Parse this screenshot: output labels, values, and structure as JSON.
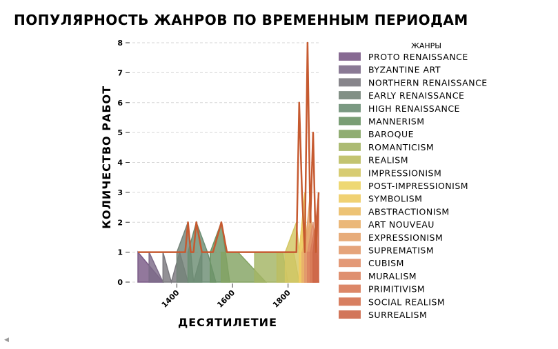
{
  "chart_data": {
    "type": "area",
    "title": "ПОПУЛЯРНОСТЬ ЖАНРОВ ПО ВРЕМЕННЫМ ПЕРИОДАМ",
    "xlabel": "ДЕСЯТИЛЕТИЕ",
    "ylabel": "КОЛИЧЕСТВО РАБОТ",
    "xlim": [
      1260,
      1910
    ],
    "ylim": [
      0,
      8
    ],
    "x_ticks": [
      "1400",
      "1600",
      "1800"
    ],
    "y_ticks": [
      "0",
      "1",
      "2",
      "3",
      "4",
      "5",
      "6",
      "7",
      "8"
    ],
    "grid": "y-dashed",
    "legend_title": "ЖАНРЫ",
    "legend_placement": "right",
    "series": [
      {
        "name": "PROTO RENAISSANCE",
        "color": "#7a5a86",
        "points": [
          [
            1260,
            1
          ],
          [
            1350,
            0
          ]
        ]
      },
      {
        "name": "BYZANTINE ART",
        "color": "#7d6b89",
        "points": [
          [
            1300,
            1
          ],
          [
            1350,
            0
          ]
        ]
      },
      {
        "name": "NORTHERN RENAISSANCE",
        "color": "#7a787e",
        "points": [
          [
            1350,
            1
          ],
          [
            1380,
            0
          ],
          [
            1410,
            1
          ],
          [
            1440,
            0
          ]
        ]
      },
      {
        "name": "EARLY RENAISSANCE",
        "color": "#748479",
        "points": [
          [
            1400,
            1
          ],
          [
            1440,
            2
          ],
          [
            1460,
            0
          ],
          [
            1490,
            1
          ]
        ]
      },
      {
        "name": "HIGH RENAISSANCE",
        "color": "#6c8e74",
        "points": [
          [
            1440,
            1
          ],
          [
            1470,
            2
          ],
          [
            1510,
            1
          ],
          [
            1540,
            0
          ]
        ]
      },
      {
        "name": "MANNERISM",
        "color": "#6c9466",
        "points": [
          [
            1520,
            1
          ],
          [
            1560,
            2
          ],
          [
            1590,
            0
          ]
        ]
      },
      {
        "name": "BAROQUE",
        "color": "#84a463",
        "points": [
          [
            1560,
            1
          ],
          [
            1620,
            1
          ],
          [
            1720,
            0
          ]
        ]
      },
      {
        "name": "ROMANTICISM",
        "color": "#a3b464",
        "points": [
          [
            1680,
            1
          ],
          [
            1780,
            1
          ],
          [
            1800,
            0
          ]
        ]
      },
      {
        "name": "REALISM",
        "color": "#bcbe62",
        "points": [
          [
            1760,
            1
          ],
          [
            1820,
            1
          ],
          [
            1840,
            0
          ]
        ]
      },
      {
        "name": "IMPRESSIONISM",
        "color": "#d3c763",
        "points": [
          [
            1790,
            1
          ],
          [
            1830,
            2
          ],
          [
            1850,
            0
          ]
        ]
      },
      {
        "name": "POST-IMPRESSIONISM",
        "color": "#ecd464",
        "points": [
          [
            1840,
            1
          ],
          [
            1860,
            3
          ],
          [
            1870,
            0
          ]
        ]
      },
      {
        "name": "SYMBOLISM",
        "color": "#eecc64",
        "points": [
          [
            1840,
            1
          ],
          [
            1850,
            2
          ],
          [
            1860,
            0
          ]
        ]
      },
      {
        "name": "ABSTRACTIONISM",
        "color": "#ebbc66",
        "points": [
          [
            1850,
            1
          ],
          [
            1880,
            2
          ],
          [
            1890,
            0
          ]
        ]
      },
      {
        "name": "ART NOUVEAU",
        "color": "#e9b06a",
        "points": [
          [
            1850,
            1
          ],
          [
            1870,
            1
          ],
          [
            1880,
            0
          ]
        ]
      },
      {
        "name": "EXPRESSIONISM",
        "color": "#e4a36c",
        "points": [
          [
            1860,
            1
          ],
          [
            1880,
            3
          ],
          [
            1890,
            0
          ]
        ]
      },
      {
        "name": "SUPREMATISM",
        "color": "#e29a6d",
        "points": [
          [
            1860,
            1
          ],
          [
            1880,
            1
          ],
          [
            1890,
            0
          ]
        ]
      },
      {
        "name": "CUBISM",
        "color": "#e08e68",
        "points": [
          [
            1870,
            1
          ],
          [
            1890,
            2
          ],
          [
            1900,
            0
          ]
        ]
      },
      {
        "name": "MURALISM",
        "color": "#dc8460",
        "points": [
          [
            1870,
            1
          ],
          [
            1890,
            1
          ],
          [
            1900,
            0
          ]
        ]
      },
      {
        "name": "PRIMITIVISM",
        "color": "#d87a58",
        "points": [
          [
            1880,
            1
          ],
          [
            1900,
            2
          ],
          [
            1910,
            0
          ]
        ]
      },
      {
        "name": "SOCIAL REALISM",
        "color": "#d47150",
        "points": [
          [
            1890,
            1
          ],
          [
            1900,
            1
          ],
          [
            1910,
            0
          ]
        ]
      },
      {
        "name": "SURREALISM",
        "color": "#cd6748",
        "points": [
          [
            1890,
            1
          ],
          [
            1910,
            3
          ]
        ]
      }
    ],
    "total_outline": {
      "color": "#c65a30",
      "points": [
        [
          1260,
          1
        ],
        [
          1300,
          1
        ],
        [
          1340,
          1
        ],
        [
          1380,
          1
        ],
        [
          1420,
          1
        ],
        [
          1430,
          1
        ],
        [
          1440,
          2
        ],
        [
          1450,
          1
        ],
        [
          1460,
          1
        ],
        [
          1470,
          2
        ],
        [
          1490,
          1
        ],
        [
          1510,
          1
        ],
        [
          1530,
          1
        ],
        [
          1560,
          2
        ],
        [
          1580,
          1
        ],
        [
          1600,
          1
        ],
        [
          1700,
          1
        ],
        [
          1780,
          1
        ],
        [
          1820,
          1
        ],
        [
          1830,
          1
        ],
        [
          1840,
          6
        ],
        [
          1850,
          3
        ],
        [
          1860,
          1
        ],
        [
          1870,
          8
        ],
        [
          1880,
          2
        ],
        [
          1890,
          5
        ],
        [
          1900,
          1
        ],
        [
          1910,
          3
        ]
      ]
    }
  }
}
